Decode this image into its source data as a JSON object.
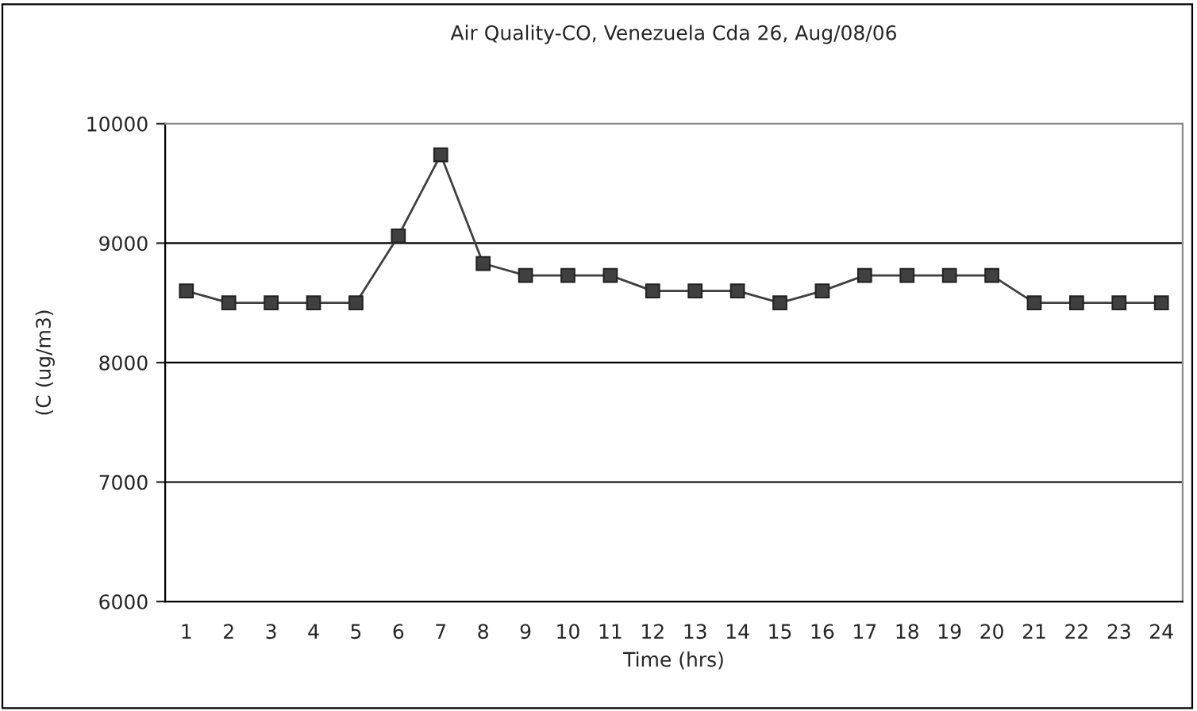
{
  "chart_data": {
    "type": "line",
    "title": "Air Quality-CO, Venezuela Cda 26, Aug/08/06",
    "xlabel": "Time (hrs)",
    "ylabel": "(C (ug/m3)",
    "categories": [
      "1",
      "2",
      "3",
      "4",
      "5",
      "6",
      "7",
      "8",
      "9",
      "10",
      "11",
      "12",
      "13",
      "14",
      "15",
      "16",
      "17",
      "18",
      "19",
      "20",
      "21",
      "22",
      "23",
      "24"
    ],
    "series": [
      {
        "color": "#404040",
        "values": [
          8600,
          8500,
          8500,
          8500,
          8500,
          9060,
          9740,
          8830,
          8730,
          8730,
          8730,
          8600,
          8600,
          8600,
          8500,
          8600,
          8730,
          8730,
          8730,
          8730,
          8500,
          8500,
          8500,
          8500
        ]
      }
    ],
    "ylim": [
      6000,
      10000
    ],
    "yticks": [
      6000,
      7000,
      8000,
      9000,
      10000
    ],
    "grid": "y",
    "marker": "square",
    "line_style": "solid",
    "legend": false
  }
}
